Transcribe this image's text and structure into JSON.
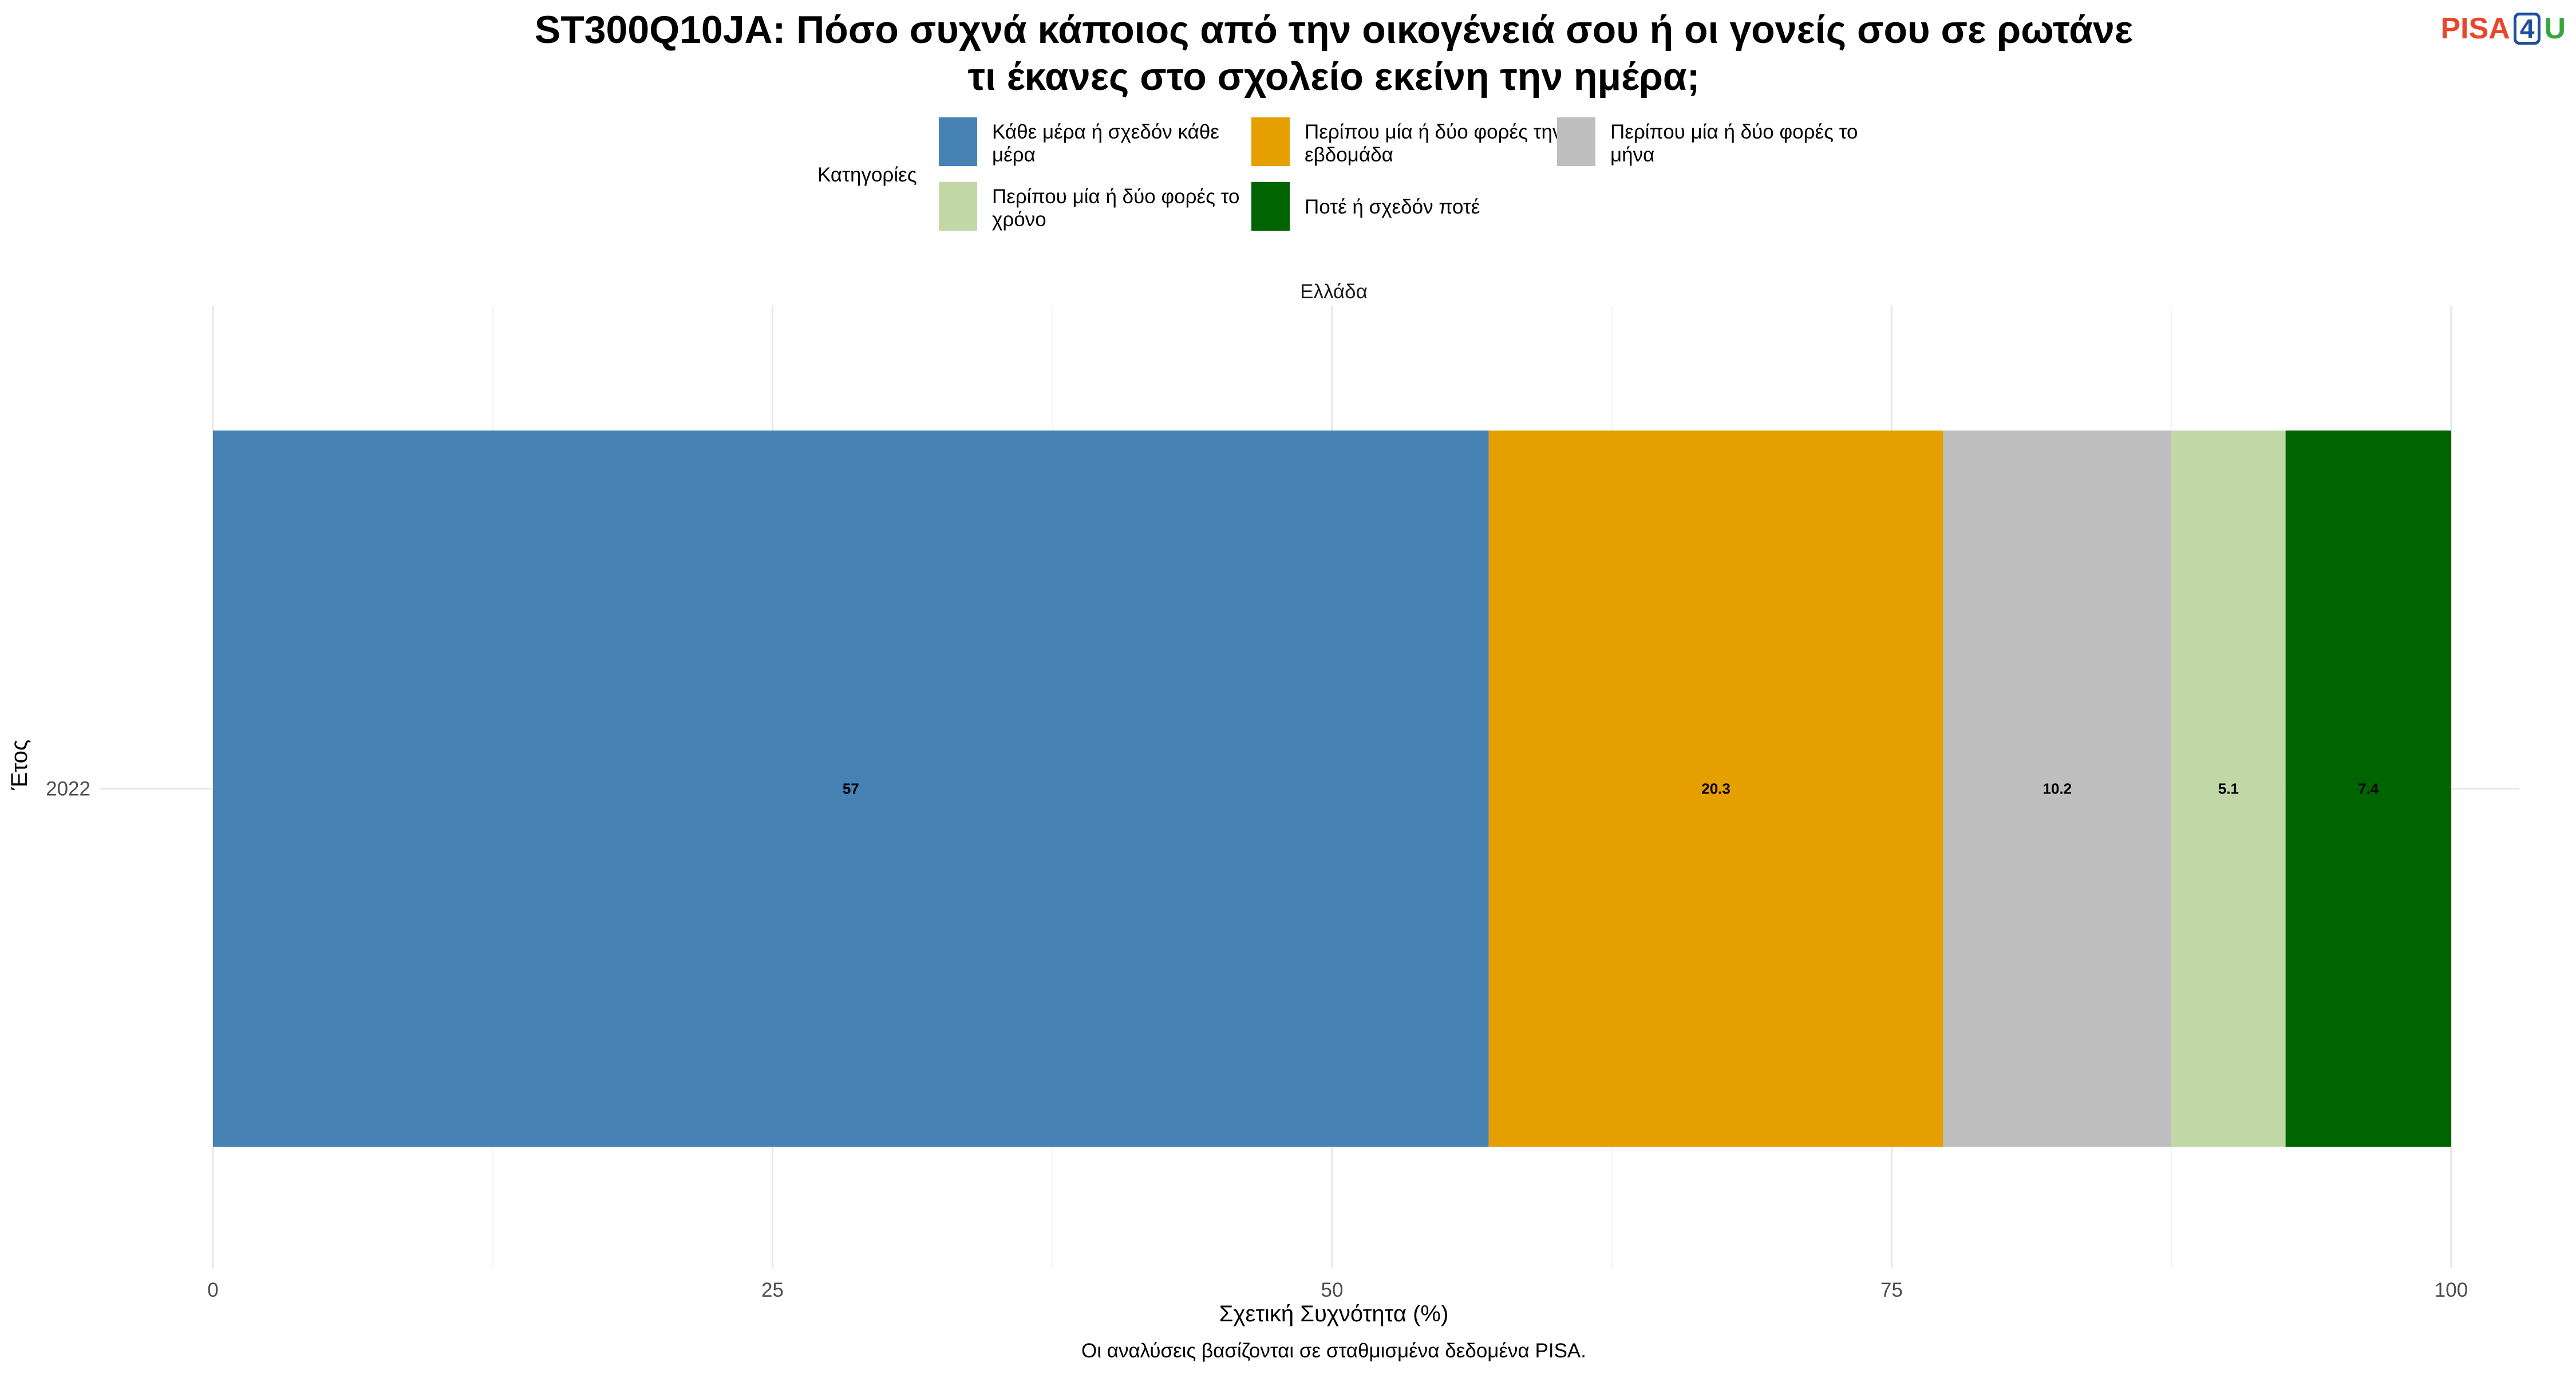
{
  "title_lines": [
    "ST300Q10JA: Πόσο συχνά κάποιος από την οικογένειά σου ή οι γονείς σου σε ρωτάνε",
    "τι έκανες στο σχολείο εκείνη την ημέρα;"
  ],
  "logo": {
    "pisa": "PISA",
    "four": "4",
    "u": "U"
  },
  "legend": {
    "title": "Κατηγορίες",
    "items": [
      {
        "label": "Κάθε μέρα ή σχεδόν κάθε μέρα",
        "color": "#4682b4"
      },
      {
        "label": "Περίπου μία ή δύο φορές την εβδομάδα",
        "color": "#e5a000"
      },
      {
        "label": "Περίπου μία ή δύο φορές το μήνα",
        "color": "#bebebe"
      },
      {
        "label": "Περίπου μία ή δύο φορές το χρόνο",
        "color": "#c1d7a5"
      },
      {
        "label": "Ποτέ ή σχεδόν ποτέ",
        "color": "#006400"
      }
    ]
  },
  "facet_label": "Ελλάδα",
  "footer_caption": "Οι αναλύσεις βασίζονται σε σταθμισμένα δεδομένα PISA.",
  "chart_data": {
    "type": "bar",
    "orientation": "horizontal",
    "stacked": true,
    "categories": [
      "2022"
    ],
    "series": [
      {
        "name": "Κάθε μέρα ή σχεδόν κάθε μέρα",
        "values": [
          57
        ],
        "color": "#4682b4"
      },
      {
        "name": "Περίπου μία ή δύο φορές την εβδομάδα",
        "values": [
          20.3
        ],
        "color": "#e5a000"
      },
      {
        "name": "Περίπου μία ή δύο φορές το μήνα",
        "values": [
          10.2
        ],
        "color": "#bebebe"
      },
      {
        "name": "Περίπου μία ή δύο φορές το χρόνο",
        "values": [
          5.1
        ],
        "color": "#c1d7a5"
      },
      {
        "name": "Ποτέ ή σχεδόν ποτέ",
        "values": [
          7.4
        ],
        "color": "#006400"
      }
    ],
    "xlabel": "Σχετική Συχνότητα (%)",
    "ylabel": "Έτος",
    "xlim": [
      0,
      100
    ],
    "xticks": [
      0,
      25,
      50,
      75,
      100
    ],
    "grid": true,
    "legend_position": "top"
  }
}
